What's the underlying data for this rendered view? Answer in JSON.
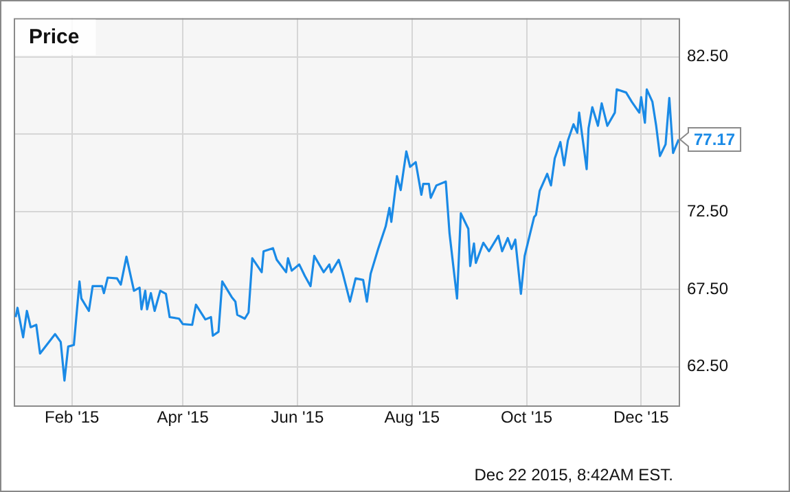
{
  "chart_data": {
    "type": "line",
    "title": "Price",
    "x": [
      "2015-01-02",
      "2015-01-03",
      "2015-01-06",
      "2015-01-08",
      "2015-01-10",
      "2015-01-13",
      "2015-01-15",
      "2015-01-23",
      "2015-01-26",
      "2015-01-28",
      "2015-01-30",
      "2015-02-02",
      "2015-02-05",
      "2015-02-06",
      "2015-02-10",
      "2015-02-12",
      "2015-02-17",
      "2015-02-18",
      "2015-02-20",
      "2015-02-25",
      "2015-02-27",
      "2015-03-02",
      "2015-03-04",
      "2015-03-06",
      "2015-03-09",
      "2015-03-10",
      "2015-03-12",
      "2015-03-13",
      "2015-03-15",
      "2015-03-17",
      "2015-03-20",
      "2015-03-23",
      "2015-03-25",
      "2015-03-30",
      "2015-04-01",
      "2015-04-06",
      "2015-04-08",
      "2015-04-13",
      "2015-04-16",
      "2015-04-17",
      "2015-04-20",
      "2015-04-22",
      "2015-04-27",
      "2015-04-29",
      "2015-04-30",
      "2015-05-04",
      "2015-05-06",
      "2015-05-08",
      "2015-05-13",
      "2015-05-14",
      "2015-05-19",
      "2015-05-21",
      "2015-05-26",
      "2015-05-27",
      "2015-05-29",
      "2015-06-02",
      "2015-06-05",
      "2015-06-08",
      "2015-06-10",
      "2015-06-15",
      "2015-06-18",
      "2015-06-19",
      "2015-06-23",
      "2015-06-25",
      "2015-06-29",
      "2015-07-02",
      "2015-07-06",
      "2015-07-08",
      "2015-07-10",
      "2015-07-14",
      "2015-07-18",
      "2015-07-20",
      "2015-07-21",
      "2015-07-24",
      "2015-07-26",
      "2015-07-29",
      "2015-07-31",
      "2015-08-03",
      "2015-08-06",
      "2015-08-07",
      "2015-08-10",
      "2015-08-11",
      "2015-08-14",
      "2015-08-19",
      "2015-08-21",
      "2015-08-25",
      "2015-08-27",
      "2015-08-31",
      "2015-09-01",
      "2015-09-03",
      "2015-09-04",
      "2015-09-08",
      "2015-09-11",
      "2015-09-16",
      "2015-09-18",
      "2015-09-21",
      "2015-09-23",
      "2015-09-25",
      "2015-09-28",
      "2015-09-30",
      "2015-10-05",
      "2015-10-06",
      "2015-10-08",
      "2015-10-12",
      "2015-10-14",
      "2015-10-16",
      "2015-10-19",
      "2015-10-21",
      "2015-10-23",
      "2015-10-26",
      "2015-10-28",
      "2015-10-29",
      "2015-11-02",
      "2015-11-03",
      "2015-11-05",
      "2015-11-08",
      "2015-11-10",
      "2015-11-13",
      "2015-11-17",
      "2015-11-18",
      "2015-11-23",
      "2015-11-26",
      "2015-11-30",
      "2015-12-01",
      "2015-12-03",
      "2015-12-04",
      "2015-12-07",
      "2015-12-09",
      "2015-12-11",
      "2015-12-14",
      "2015-12-16",
      "2015-12-18",
      "2015-12-21"
    ],
    "series": [
      {
        "color": "#1a8ae6",
        "values": [
          65.7,
          66.3,
          64.4,
          66.1,
          65.05,
          65.2,
          63.35,
          64.6,
          64.1,
          61.6,
          63.8,
          63.9,
          68.0,
          66.9,
          66.1,
          67.7,
          67.7,
          67.25,
          68.25,
          68.2,
          67.8,
          69.6,
          68.5,
          67.4,
          67.6,
          66.2,
          67.4,
          66.2,
          67.25,
          66.1,
          67.4,
          67.2,
          65.7,
          65.6,
          65.25,
          65.2,
          66.5,
          65.55,
          65.7,
          64.5,
          64.75,
          68.0,
          67.0,
          66.7,
          65.85,
          65.6,
          66.0,
          69.5,
          68.6,
          69.95,
          70.15,
          69.4,
          68.6,
          69.5,
          68.7,
          69.1,
          68.35,
          67.7,
          69.65,
          68.6,
          69.1,
          68.6,
          69.4,
          68.6,
          66.7,
          68.2,
          68.1,
          66.7,
          68.5,
          70.1,
          71.55,
          72.75,
          71.85,
          74.8,
          73.9,
          76.4,
          75.4,
          75.7,
          73.6,
          74.3,
          74.3,
          73.4,
          74.2,
          74.45,
          71.1,
          66.9,
          72.4,
          71.4,
          69.0,
          70.45,
          69.2,
          70.5,
          69.95,
          70.95,
          69.95,
          70.8,
          70.1,
          70.7,
          67.2,
          69.65,
          72.15,
          72.3,
          73.85,
          74.95,
          74.2,
          75.95,
          77.0,
          75.5,
          77.1,
          78.15,
          77.6,
          78.9,
          75.25,
          77.9,
          79.25,
          78.05,
          79.5,
          78.05,
          78.9,
          80.4,
          80.2,
          79.6,
          78.9,
          79.9,
          78.25,
          80.4,
          79.6,
          78.05,
          76.1,
          76.85,
          79.85,
          76.3,
          77.17
        ]
      }
    ],
    "xlim": [
      "2015-01-01",
      "2015-12-21"
    ],
    "xticks": [
      {
        "value": "2015-02-01",
        "label": "Feb '15"
      },
      {
        "value": "2015-04-01",
        "label": "Apr '15"
      },
      {
        "value": "2015-06-01",
        "label": "Jun '15"
      },
      {
        "value": "2015-08-01",
        "label": "Aug '15"
      },
      {
        "value": "2015-10-01",
        "label": "Oct '15"
      },
      {
        "value": "2015-12-01",
        "label": "Dec '15"
      }
    ],
    "ylim": [
      60,
      85
    ],
    "yticks": [
      {
        "value": 62.5,
        "label": "62.50"
      },
      {
        "value": 67.5,
        "label": "67.50"
      },
      {
        "value": 72.5,
        "label": "72.50"
      },
      {
        "value": 77.5,
        "label": null
      },
      {
        "value": 82.5,
        "label": "82.50"
      }
    ],
    "grid": true,
    "legend": false,
    "marker": "none",
    "line_style": "solid",
    "annotations": [
      {
        "text": "77.17",
        "x": "2015-12-21",
        "y": 77.17
      },
      "Dec 22 2015, 8:42AM EST."
    ]
  }
}
